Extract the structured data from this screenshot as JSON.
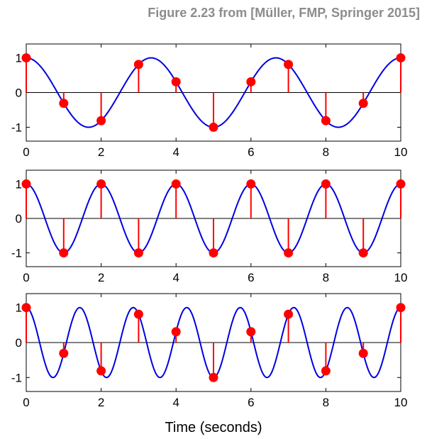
{
  "header": {
    "title": "Figure 2.23 from [Müller, FMP, Springer 2015]"
  },
  "colors": {
    "curve": "#0000e0",
    "samples": "#ff0000",
    "axis": "#000000"
  },
  "chart_data": [
    {
      "type": "line",
      "description_series": "cosine with stem samples",
      "frequency_hz": 0.3,
      "sample_times": [
        0,
        1,
        2,
        3,
        4,
        5,
        6,
        7,
        8,
        9,
        10
      ],
      "sample_values": [
        1,
        -0.31,
        -0.81,
        0.81,
        0.31,
        -1,
        0.31,
        0.81,
        -0.81,
        -0.31,
        1
      ],
      "xlim": [
        0,
        10
      ],
      "ylim": [
        -1.4,
        1.4
      ],
      "xticks": [
        "0",
        "2",
        "4",
        "6",
        "8",
        "10"
      ],
      "yticks": [
        "1",
        "0",
        "-1"
      ],
      "xlabel": ""
    },
    {
      "type": "line",
      "frequency_hz": 0.5,
      "sample_times": [
        0,
        1,
        2,
        3,
        4,
        5,
        6,
        7,
        8,
        9,
        10
      ],
      "sample_values": [
        1,
        -1,
        1,
        -1,
        1,
        -1,
        1,
        -1,
        1,
        -1,
        1
      ],
      "xlim": [
        0,
        10
      ],
      "ylim": [
        -1.4,
        1.4
      ],
      "xticks": [
        "0",
        "2",
        "4",
        "6",
        "8",
        "10"
      ],
      "yticks": [
        "1",
        "0",
        "-1"
      ],
      "xlabel": ""
    },
    {
      "type": "line",
      "frequency_hz": 0.7,
      "sample_times": [
        0,
        1,
        2,
        3,
        4,
        5,
        6,
        7,
        8,
        9,
        10
      ],
      "sample_values": [
        1,
        -0.31,
        -0.81,
        0.81,
        0.31,
        -1,
        0.31,
        0.81,
        -0.81,
        -0.31,
        1
      ],
      "xlim": [
        0,
        10
      ],
      "ylim": [
        -1.4,
        1.4
      ],
      "xticks": [
        "0",
        "2",
        "4",
        "6",
        "8",
        "10"
      ],
      "yticks": [
        "1",
        "0",
        "-1"
      ],
      "xlabel": "Time (seconds)"
    }
  ]
}
